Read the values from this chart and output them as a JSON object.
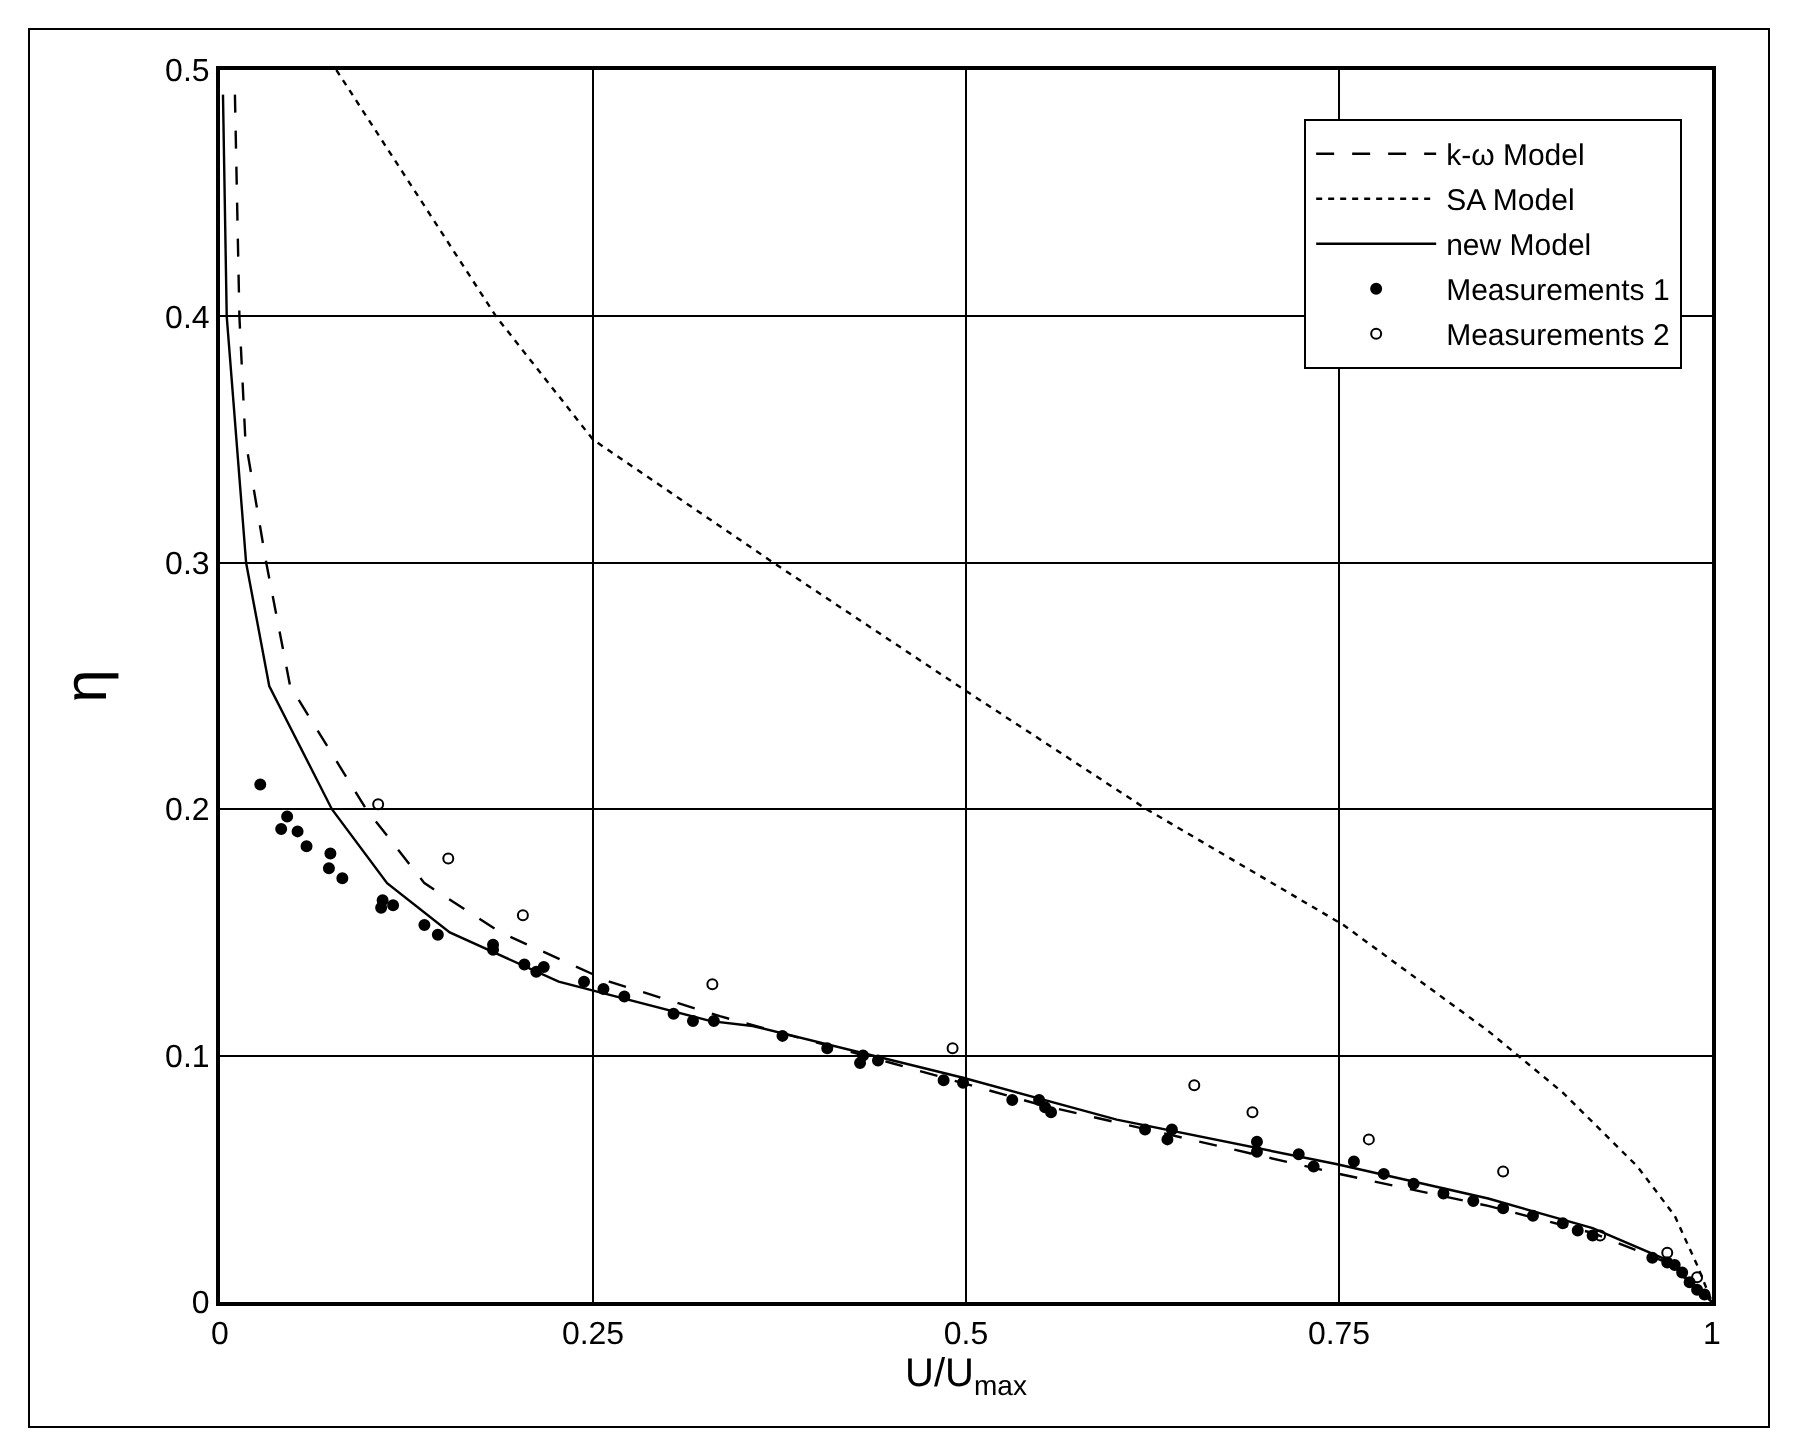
{
  "chart_data": {
    "type": "line",
    "xlabel": "U/U$_{max}$",
    "ylabel": "η",
    "xlim": [
      0,
      1
    ],
    "ylim": [
      0,
      0.5
    ],
    "xticks": [
      0,
      0.25,
      0.5,
      0.75,
      1
    ],
    "yticks": [
      0,
      0.1,
      0.2,
      0.3,
      0.4,
      0.5
    ],
    "grid": true,
    "legend": "top right",
    "series": [
      {
        "name": "k-ω Model",
        "line_style": "dashed",
        "marker": "none",
        "color": "#000000",
        "x": [
          0.01,
          0.013,
          0.017,
          0.031,
          0.047,
          0.098,
          0.137,
          0.188,
          0.261,
          0.335,
          0.45,
          0.55,
          0.65,
          0.75,
          0.85,
          0.92,
          0.97,
          1
        ],
        "values": [
          0.49,
          0.4,
          0.35,
          0.3,
          0.25,
          0.2,
          0.17,
          0.15,
          0.13,
          0.116,
          0.097,
          0.08,
          0.066,
          0.052,
          0.039,
          0.028,
          0.016,
          0
        ]
      },
      {
        "name": "SA Model",
        "line_style": "dotted",
        "marker": "none",
        "color": "#000000",
        "x": [
          0.078,
          0.185,
          0.25,
          0.371,
          0.5,
          0.621,
          0.753,
          0.85,
          0.9,
          0.95,
          0.975,
          0.99,
          1
        ],
        "values": [
          0.5,
          0.4,
          0.35,
          0.3,
          0.248,
          0.2,
          0.153,
          0.11,
          0.085,
          0.055,
          0.035,
          0.015,
          0
        ]
      },
      {
        "name": "new Model",
        "line_style": "solid",
        "marker": "none",
        "color": "#000000",
        "x": [
          0.002,
          0.0045,
          0.0175,
          0.033,
          0.075,
          0.112,
          0.154,
          0.227,
          0.329,
          0.357,
          0.498,
          0.601,
          0.748,
          0.85,
          0.92,
          0.97,
          1
        ],
        "values": [
          0.49,
          0.4,
          0.3,
          0.25,
          0.2,
          0.17,
          0.15,
          0.13,
          0.114,
          0.112,
          0.091,
          0.074,
          0.056,
          0.042,
          0.03,
          0.017,
          0
        ]
      },
      {
        "name": "Measurements 1",
        "type": "scatter",
        "marker": "circle",
        "color": "#000000",
        "x": [
          0.027,
          0.045,
          0.041,
          0.052,
          0.058,
          0.074,
          0.073,
          0.082,
          0.109,
          0.108,
          0.116,
          0.137,
          0.146,
          0.183,
          0.183,
          0.204,
          0.212,
          0.217,
          0.244,
          0.257,
          0.271,
          0.304,
          0.317,
          0.331,
          0.377,
          0.407,
          0.431,
          0.429,
          0.441,
          0.485,
          0.498,
          0.531,
          0.549,
          0.553,
          0.557,
          0.62,
          0.635,
          0.638,
          0.695,
          0.695,
          0.723,
          0.733,
          0.76,
          0.78,
          0.8,
          0.82,
          0.84,
          0.86,
          0.88,
          0.9,
          0.91,
          0.92,
          0.96,
          0.97,
          0.975,
          0.98,
          0.985,
          0.99,
          0.995
        ],
        "values": [
          0.21,
          0.197,
          0.192,
          0.191,
          0.185,
          0.182,
          0.176,
          0.172,
          0.163,
          0.16,
          0.161,
          0.153,
          0.149,
          0.145,
          0.143,
          0.137,
          0.134,
          0.136,
          0.13,
          0.127,
          0.124,
          0.117,
          0.114,
          0.114,
          0.108,
          0.103,
          0.1,
          0.097,
          0.098,
          0.09,
          0.089,
          0.082,
          0.082,
          0.079,
          0.077,
          0.07,
          0.066,
          0.07,
          0.065,
          0.061,
          0.06,
          0.055,
          0.057,
          0.052,
          0.048,
          0.044,
          0.041,
          0.038,
          0.035,
          0.032,
          0.029,
          0.027,
          0.018,
          0.016,
          0.015,
          0.012,
          0.008,
          0.005,
          0.003
        ]
      },
      {
        "name": "Measurements 2",
        "type": "scatter",
        "marker": "circle-open",
        "color": "#000000",
        "x": [
          0.106,
          0.153,
          0.203,
          0.33,
          0.491,
          0.653,
          0.692,
          0.77,
          0.86,
          0.925,
          0.97,
          0.99
        ],
        "values": [
          0.202,
          0.18,
          0.157,
          0.129,
          0.103,
          0.088,
          0.077,
          0.066,
          0.053,
          0.027,
          0.02,
          0.01
        ]
      }
    ]
  }
}
